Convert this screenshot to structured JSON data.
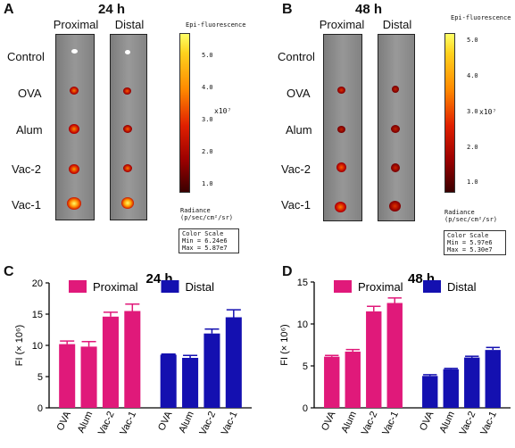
{
  "panels": {
    "A": {
      "letter": "A",
      "time": "24 h",
      "proximal": "Proximal",
      "distal": "Distal",
      "epi": "Epi-fluorescence",
      "exponent": "x10⁷",
      "ticks": [
        "5.0",
        "4.0",
        "3.0",
        "2.0",
        "1.0"
      ],
      "radiance_line1": "Radiance",
      "radiance_line2": "(p/sec/cm²/sr)",
      "scale_title": "Color Scale",
      "scale_min": "Min = 6.24e6",
      "scale_max": "Max = 5.87e7"
    },
    "B": {
      "letter": "B",
      "time": "48 h",
      "proximal": "Proximal",
      "distal": "Distal",
      "epi": "Epi-fluorescence",
      "exponent": "x10⁷",
      "ticks": [
        "5.0",
        "4.0",
        "3.0",
        "2.0",
        "1.0"
      ],
      "radiance_line1": "Radiance",
      "radiance_line2": "(p/sec/cm²/sr)",
      "scale_title": "Color Scale",
      "scale_min": "Min = 5.97e6",
      "scale_max": "Max = 5.30e7"
    }
  },
  "row_labels": [
    "Control",
    "OVA",
    "Alum",
    "Vac-2",
    "Vac-1"
  ],
  "colors": {
    "proximal": "#e0197a",
    "distal": "#1410b0"
  },
  "chart_data": [
    {
      "panel": "C",
      "type": "bar",
      "title": "24 h",
      "ylabel": "FI (× 10⁶)",
      "ylim": [
        0,
        20
      ],
      "yticks": [
        0,
        5,
        10,
        15,
        20
      ],
      "categories": [
        "OVA",
        "Alum",
        "Vac-2",
        "Vac-1"
      ],
      "series": [
        {
          "name": "Proximal",
          "color": "#e0197a",
          "values": [
            10.2,
            9.8,
            14.6,
            15.5
          ],
          "errors": [
            0.5,
            0.8,
            0.7,
            1.1
          ]
        },
        {
          "name": "Distal",
          "color": "#1410b0",
          "values": [
            8.5,
            8.0,
            11.9,
            14.5
          ],
          "errors": [
            0.1,
            0.4,
            0.7,
            1.2
          ]
        }
      ]
    },
    {
      "panel": "D",
      "type": "bar",
      "title": "48 h",
      "ylabel": "FI (× 10⁶)",
      "ylim": [
        0,
        15
      ],
      "yticks": [
        0,
        5,
        10,
        15
      ],
      "categories": [
        "OVA",
        "Alum",
        "Vac-2",
        "Vac-1"
      ],
      "series": [
        {
          "name": "Proximal",
          "color": "#e0197a",
          "values": [
            6.1,
            6.7,
            11.5,
            12.5
          ],
          "errors": [
            0.15,
            0.25,
            0.6,
            0.6
          ]
        },
        {
          "name": "Distal",
          "color": "#1410b0",
          "values": [
            3.8,
            4.6,
            6.0,
            6.9
          ],
          "errors": [
            0.15,
            0.1,
            0.15,
            0.3
          ]
        }
      ]
    }
  ]
}
